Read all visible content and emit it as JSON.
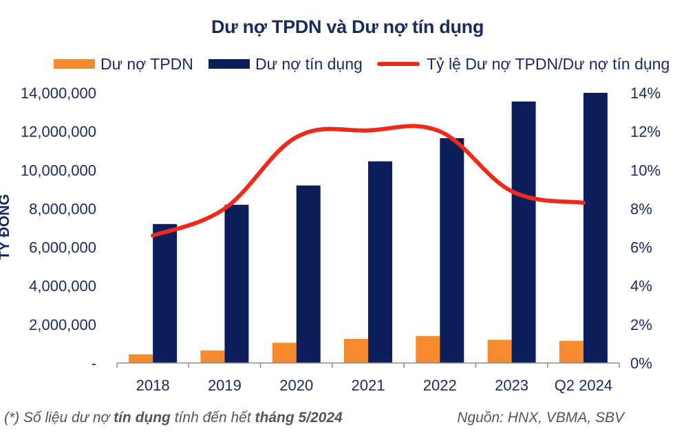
{
  "chart_data": {
    "type": "bar",
    "title": "Dư nợ TPDN và Dư nợ tín dụng",
    "categories": [
      "2018",
      "2019",
      "2020",
      "2021",
      "2022",
      "2023",
      "Q2 2024"
    ],
    "ylabel": "Tỷ đồng",
    "ylim": [
      0,
      14000000
    ],
    "y_ticks": [
      "-",
      "2,000,000",
      "4,000,000",
      "6,000,000",
      "8,000,000",
      "10,000,000",
      "12,000,000",
      "14,000,000"
    ],
    "y2lim": [
      0,
      14
    ],
    "y2_ticks": [
      "0%",
      "2%",
      "4%",
      "6%",
      "8%",
      "10%",
      "12%",
      "14%"
    ],
    "series": [
      {
        "name": "Dư nợ TPDN",
        "type": "bar",
        "axis": "left",
        "color": "#f58a2e",
        "values": [
          450000,
          650000,
          1050000,
          1250000,
          1400000,
          1200000,
          1150000
        ]
      },
      {
        "name": "Dư nợ tín dụng",
        "type": "bar",
        "axis": "left",
        "color": "#0c1f5c",
        "values": [
          7200000,
          8200000,
          9200000,
          10450000,
          11650000,
          13550000,
          14000000
        ]
      },
      {
        "name": "Tỷ lệ Dư nợ TPDN/Dư nợ tín dụng",
        "type": "line",
        "axis": "right",
        "color": "#ee2a1b",
        "values": [
          6.6,
          8.0,
          11.7,
          12.05,
          12.0,
          8.9,
          8.3
        ]
      }
    ],
    "grid": true,
    "legend_position": "top"
  },
  "footnote": {
    "prefix": "(*) Số liệu dư nợ ",
    "mid": "tín dụng",
    "middle": " tính đến hết ",
    "end": "tháng 5/2024"
  },
  "source": "Nguồn: HNX, VBMA, SBV"
}
